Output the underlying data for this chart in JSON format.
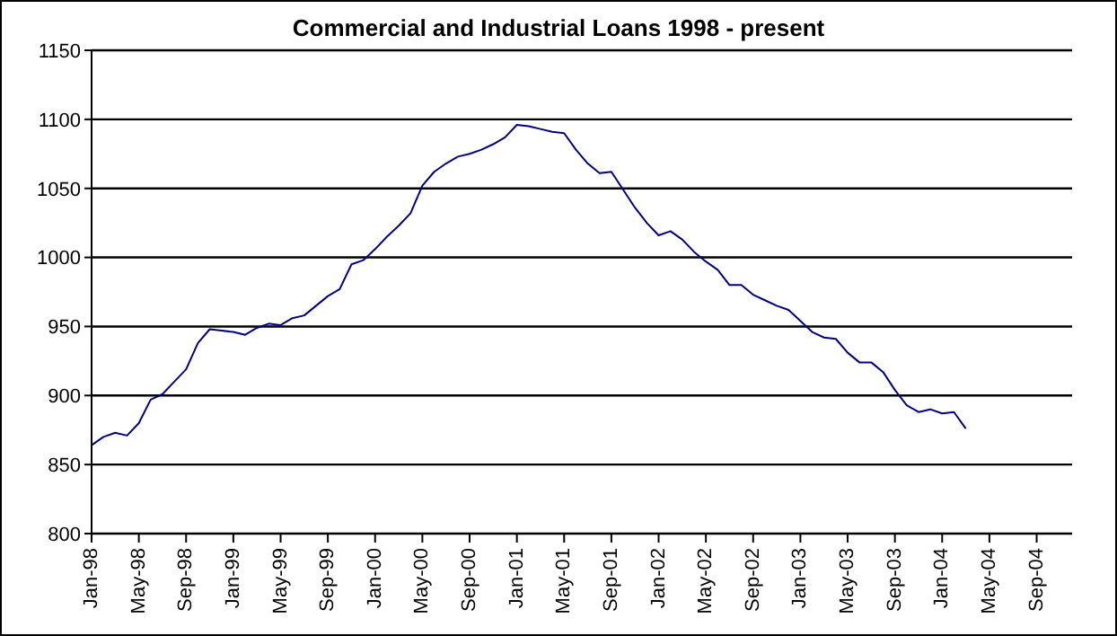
{
  "chart_data": {
    "type": "line",
    "title": "Commercial and Industrial Loans 1998 - present",
    "categories": [
      "Jan-98",
      null,
      null,
      null,
      "May-98",
      null,
      null,
      null,
      "Sep-98",
      null,
      null,
      null,
      "Jan-99",
      null,
      null,
      null,
      "May-99",
      null,
      null,
      null,
      "Sep-99",
      null,
      null,
      null,
      "Jan-00",
      null,
      null,
      null,
      "May-00",
      null,
      null,
      null,
      "Sep-00",
      null,
      null,
      null,
      "Jan-01",
      null,
      null,
      null,
      "May-01",
      null,
      null,
      null,
      "Sep-01",
      null,
      null,
      null,
      "Jan-02",
      null,
      null,
      null,
      "May-02",
      null,
      null,
      null,
      "Sep-02",
      null,
      null,
      null,
      "Jan-03",
      null,
      null,
      null,
      "May-03",
      null,
      null,
      null,
      "Sep-03",
      null,
      null,
      null,
      "Jan-04",
      null,
      null,
      null,
      "May-04",
      null,
      null,
      null,
      "Sep-04",
      null,
      null,
      null
    ],
    "series": [
      {
        "color": "#000080",
        "values": [
          864,
          870,
          873,
          871,
          880,
          897,
          901,
          910,
          919,
          938,
          948,
          947,
          946,
          944,
          949,
          952,
          951,
          956,
          958,
          965,
          972,
          977,
          995,
          998,
          1006,
          1015,
          1023,
          1032,
          1052,
          1062,
          1068,
          1073,
          1075,
          1078,
          1082,
          1087,
          1096,
          1095,
          1093,
          1091,
          1090,
          1078,
          1068,
          1061,
          1062,
          1049,
          1036,
          1025,
          1016,
          1019,
          1013,
          1004,
          997,
          991,
          980,
          980,
          973,
          969,
          965,
          962,
          954,
          946,
          942,
          941,
          931,
          924,
          924,
          917,
          904,
          893,
          888,
          890,
          887,
          888,
          876,
          null,
          null,
          null,
          null,
          null,
          null,
          null,
          null,
          null
        ]
      }
    ],
    "ylim": [
      800,
      1150
    ],
    "yticks": [
      800,
      850,
      900,
      950,
      1000,
      1050,
      1100,
      1150
    ],
    "grid": "y",
    "legend": false,
    "marker": "none",
    "line_style": "solid"
  }
}
